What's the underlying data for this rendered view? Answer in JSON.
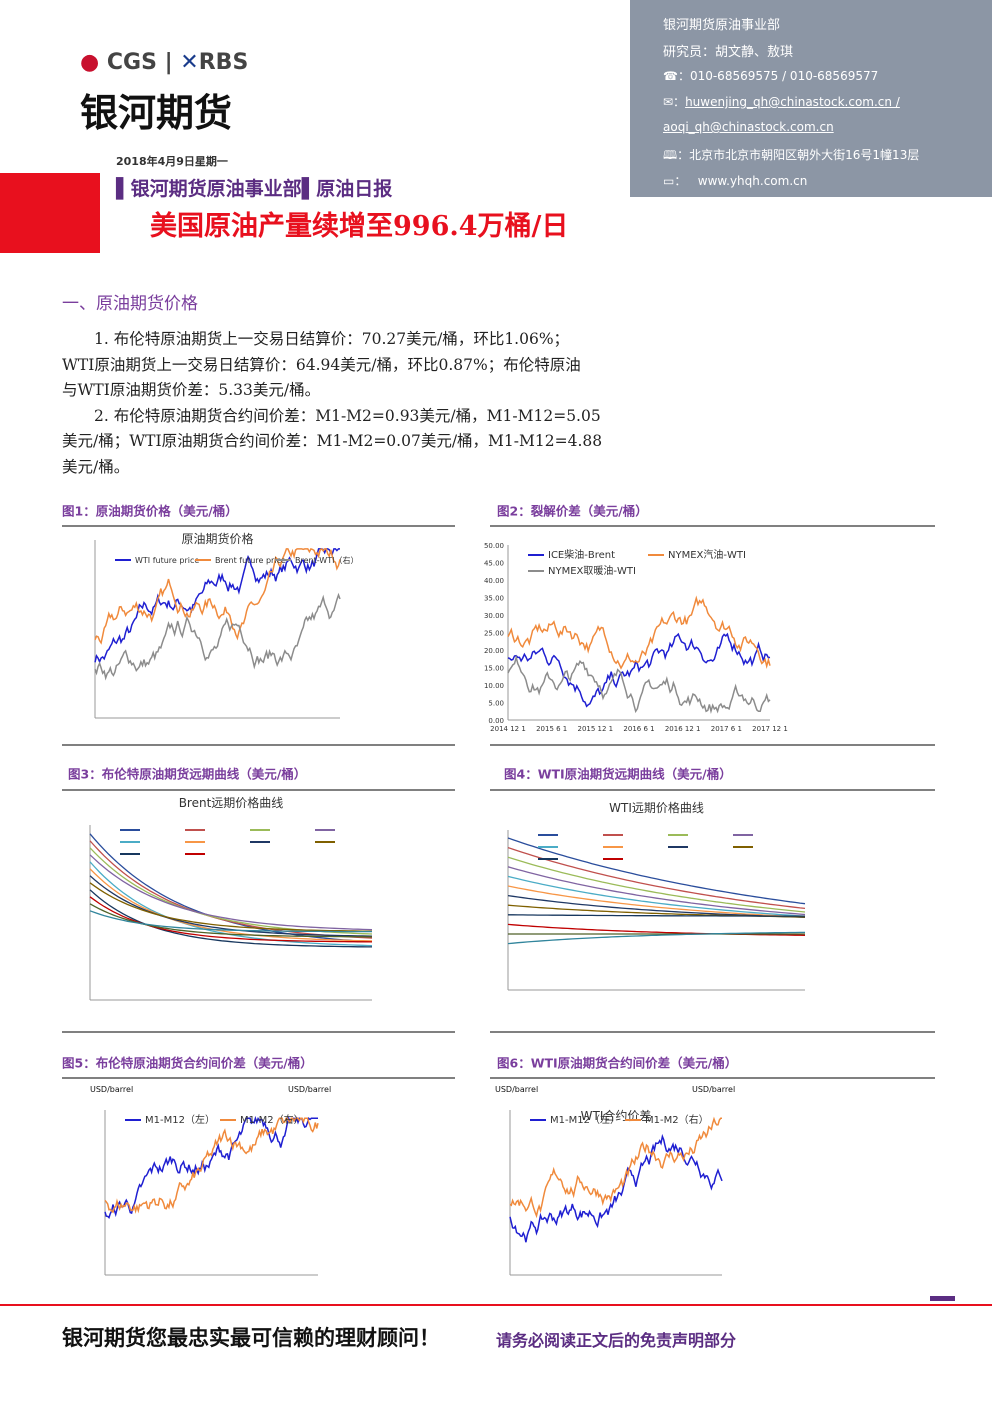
{
  "header": {
    "logo_cgs": "CGS",
    "logo_rbs": "RBS",
    "company": "银河期货",
    "date": "2018年4月9日星期一",
    "department": "银河期货原油事业部",
    "report": "原油日报",
    "headline": "美国原油产量续增至996.4万桶/日"
  },
  "contact": {
    "dept": "银河期货原油事业部",
    "researchers": "研究员：胡文静、敖琪",
    "phone": "☎：010-68569575 / 010-68569577",
    "email1": "huwenjing_qh@chinastock.com.cn /",
    "email2": "aoqi_qh@chinastock.com.cn",
    "address": "北京市北京市朝阳区朝外大街16号1幢13层",
    "website": "www.yhqh.com.cn"
  },
  "section": {
    "title": "一、原油期货价格",
    "paragraphs": [
      {
        "lines": [
          "1. 布伦特原油期货上一交易日结算价：70.27美元/桶，环比1.06%；",
          "WTI原油期货上一交易日结算价：64.94美元/桶，环比0.87%；布伦特原油",
          "与WTI原油期货价差：5.33美元/桶。"
        ]
      },
      {
        "lines": [
          "2. 布伦特原油期货合约间价差：M1-M2=0.93美元/桶，M1-M12=5.05",
          "美元/桶；WTI原油期货合约间价差：M1-M2=0.07美元/桶，M1-M12=4.88",
          "美元/桶。"
        ]
      }
    ]
  },
  "figures": [
    {
      "caption": "图1：原油期货价格（美元/桶）",
      "chart_title": "原油期货价格",
      "legend": [
        "WTI future price",
        "Brent future price",
        "Brent-WTI（右）"
      ]
    },
    {
      "caption": "图2：裂解价差（美元/桶）",
      "legend": [
        "ICE柴油-Brent",
        "NYMEX汽油-WTI",
        "NYMEX取暖油-WTI"
      ],
      "yticks": [
        "50.00",
        "45.00",
        "40.00",
        "35.00",
        "30.00",
        "25.00",
        "20.00",
        "15.00",
        "10.00",
        "5.00",
        "0.00"
      ],
      "xticks": [
        "2014 12 1",
        "2015 6 1",
        "2015 12 1",
        "2016 6 1",
        "2016 12 1",
        "2017 6 1",
        "2017 12 1"
      ]
    },
    {
      "caption": "图3：布伦特原油期货远期曲线（美元/桶）",
      "chart_title": "Brent远期价格曲线"
    },
    {
      "caption": "图4：WTI原油期货远期曲线（美元/桶）",
      "chart_title": "WTI远期价格曲线"
    },
    {
      "caption": "图5：布伦特原油期货合约间价差（美元/桶）",
      "legend": [
        "M1-M12（左）",
        "M1-M2（右）"
      ],
      "unit_left": "USD/barrel",
      "unit_right": "USD/barrel"
    },
    {
      "caption": "图6：WTI原油期货合约间价差（美元/桶）",
      "chart_title": "WTI合约价差",
      "legend": [
        "M1-M12（左）",
        "M1-M2（右）"
      ],
      "unit_left": "USD/barrel",
      "unit_right": "USD/barrel"
    }
  ],
  "footer": {
    "slogan": "银河期货您最忠实最可信赖的理财顾问！",
    "disclaimer": "请务必阅读正文后的免责声明部分"
  }
}
